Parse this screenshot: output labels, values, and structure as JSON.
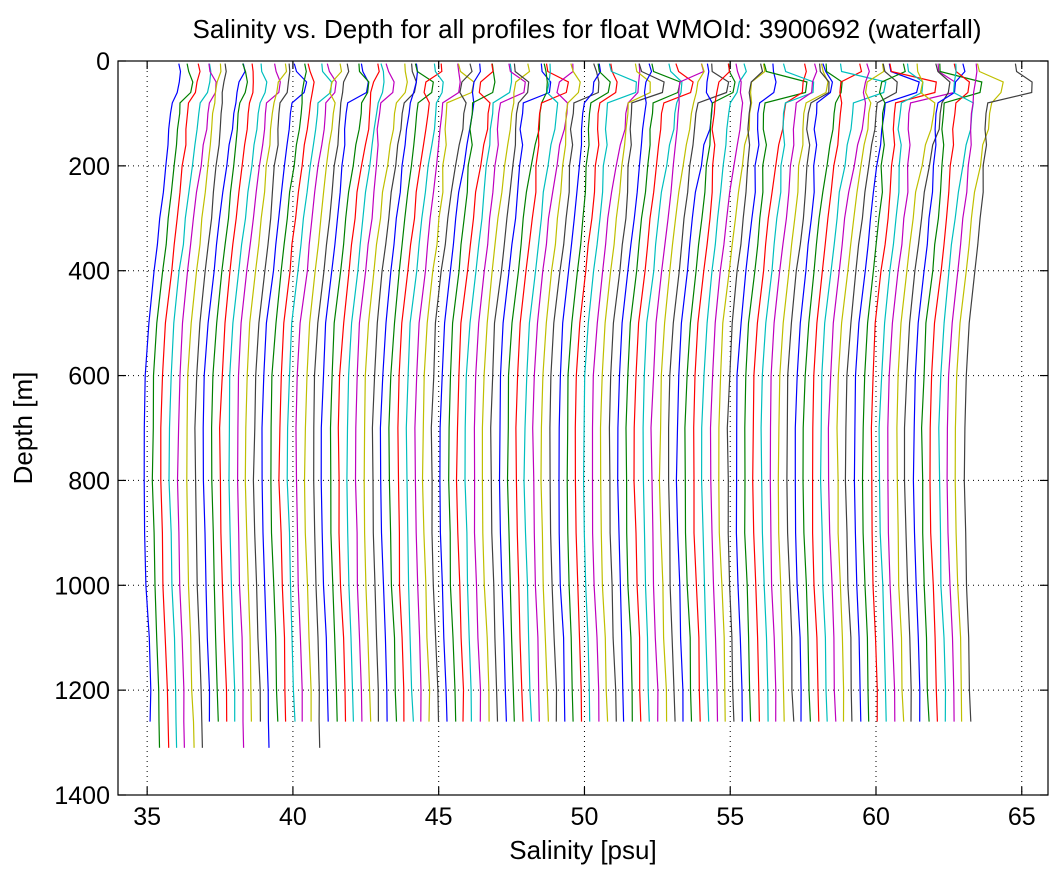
{
  "chart_data": {
    "type": "line",
    "title": "Salinity vs. Depth for all profiles for float WMOId: 3900692 (waterfall)",
    "xlabel": "Salinity [psu]",
    "ylabel": "Depth [m]",
    "xlim": [
      34,
      65.9
    ],
    "ylim": [
      0,
      1400
    ],
    "y_reversed": true,
    "grid": true,
    "x_ticks": [
      35,
      40,
      45,
      50,
      55,
      60,
      65
    ],
    "y_ticks": [
      0,
      200,
      400,
      600,
      800,
      1000,
      1200,
      1400
    ],
    "x_tick_labels": [
      "35",
      "40",
      "45",
      "50",
      "55",
      "60",
      "65"
    ],
    "y_tick_labels": [
      "0",
      "200",
      "400",
      "600",
      "800",
      "1000",
      "1200",
      "1400"
    ],
    "series_colors": [
      "#0000ff",
      "#008000",
      "#ff0000",
      "#00bfbf",
      "#bf00bf",
      "#bfbf00",
      "#404040"
    ],
    "profile_count": 98,
    "profile_offset_psu": 0.29,
    "base_profile": {
      "depth": [
        5,
        20,
        40,
        60,
        80,
        100,
        130,
        160,
        200,
        250,
        300,
        350,
        400,
        500,
        600,
        700,
        800,
        900,
        1000,
        1100,
        1200,
        1260
      ],
      "salinity": [
        36.1,
        36.15,
        36.0,
        35.95,
        35.9,
        35.85,
        35.8,
        35.75,
        35.65,
        35.55,
        35.45,
        35.35,
        35.25,
        35.05,
        34.95,
        34.9,
        34.9,
        34.93,
        34.98,
        35.05,
        35.1,
        35.12
      ]
    },
    "deep_profile_max_depth": 1310,
    "deep_profile_indices": [
      1,
      2,
      3,
      4,
      5,
      6,
      11,
      14,
      20
    ]
  }
}
